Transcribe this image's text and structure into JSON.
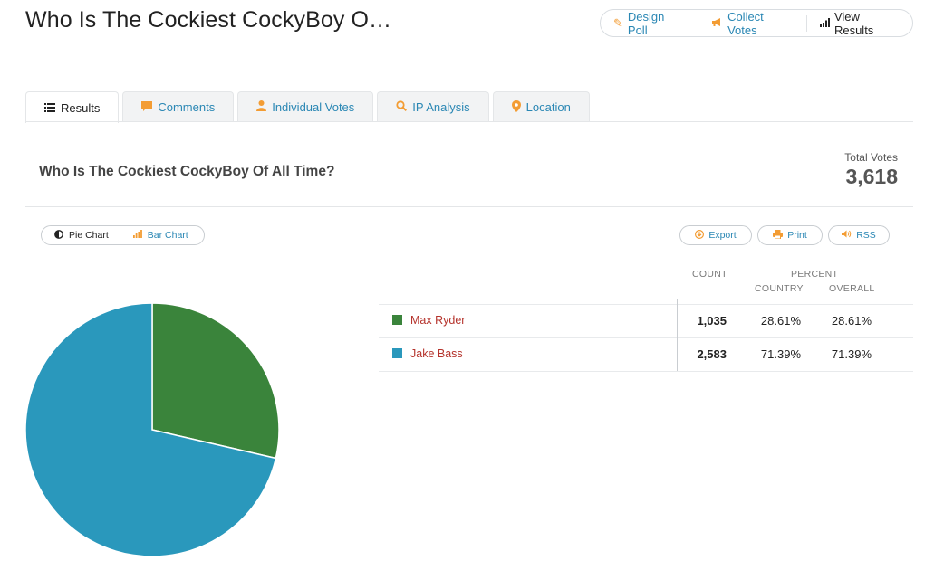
{
  "page": {
    "title": "Who Is The Cockiest CockyBoy O…"
  },
  "top_nav": {
    "design": "Design Poll",
    "collect": "Collect Votes",
    "results": "View Results"
  },
  "tabs": [
    {
      "label": "Results",
      "icon": "list-icon"
    },
    {
      "label": "Comments",
      "icon": "comment-icon"
    },
    {
      "label": "Individual Votes",
      "icon": "user-icon"
    },
    {
      "label": "IP Analysis",
      "icon": "search-icon"
    },
    {
      "label": "Location",
      "icon": "map-pin-icon"
    }
  ],
  "poll": {
    "question": "Who Is The Cockiest CockyBoy Of All Time?",
    "total_label": "Total Votes",
    "total_value": "3,618"
  },
  "chart_toggle": {
    "pie": "Pie Chart",
    "bar": "Bar Chart"
  },
  "actions": {
    "export": "Export",
    "print": "Print",
    "rss": "RSS"
  },
  "table": {
    "count_header": "COUNT",
    "percent_header": "PERCENT",
    "country_header": "COUNTRY",
    "overall_header": "OVERALL",
    "rows": [
      {
        "name": "Max Ryder",
        "count": "1,035",
        "country": "28.61%",
        "overall": "28.61%",
        "color": "#3a843b"
      },
      {
        "name": "Jake Bass",
        "count": "2,583",
        "country": "71.39%",
        "overall": "71.39%",
        "color": "#2a98bc"
      }
    ]
  },
  "chart_data": {
    "type": "pie",
    "categories": [
      "Max Ryder",
      "Jake Bass"
    ],
    "values": [
      1035,
      2583
    ],
    "colors": [
      "#3a843b",
      "#2a98bc"
    ]
  }
}
